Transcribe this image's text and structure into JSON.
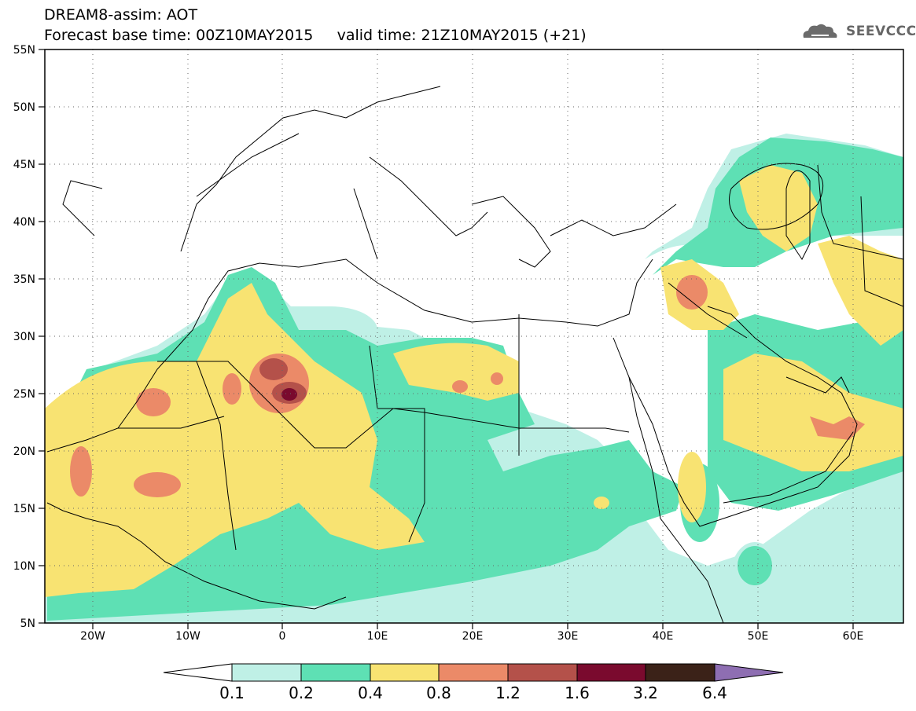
{
  "header": {
    "title": "DREAM8-assim: AOT",
    "base_time": "Forecast base time: 00Z10MAY2015",
    "valid_time": "valid time: 21Z10MAY2015 (+21)"
  },
  "logo": {
    "text": "SEEVCCC",
    "icon": "cloud-logo-icon"
  },
  "axes": {
    "lat_labels": [
      "55N",
      "50N",
      "45N",
      "40N",
      "35N",
      "30N",
      "25N",
      "20N",
      "15N",
      "10N",
      "5N"
    ],
    "lon_labels": [
      "20W",
      "10W",
      "0",
      "10E",
      "20E",
      "30E",
      "40E",
      "50E",
      "60E"
    ],
    "grid": "dotted"
  },
  "colorbar": {
    "labels": [
      "0.1",
      "0.2",
      "0.4",
      "0.8",
      "1.2",
      "1.6",
      "3.2",
      "6.4"
    ],
    "colors": [
      "#ffffff",
      "#bff0e6",
      "#5ee0b4",
      "#f8e372",
      "#eb8a68",
      "#b4514a",
      "#7a0a2e",
      "#3b2218",
      "#8e6eb2"
    ]
  },
  "palette": {
    "coast": "#000000",
    "land": "#ffffff"
  }
}
